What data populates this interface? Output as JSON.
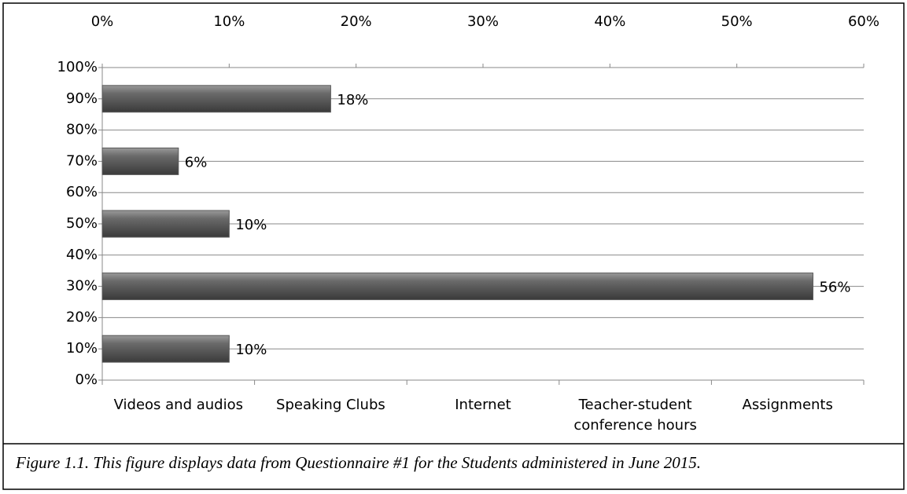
{
  "chart_data": {
    "type": "bar",
    "orientation": "horizontal",
    "categories": [
      "Videos and audios",
      "Speaking Clubs",
      "Internet",
      "Teacher-student conference hours",
      "Assignments"
    ],
    "positions": [
      10,
      30,
      50,
      70,
      90
    ],
    "values": [
      10,
      56,
      10,
      6,
      18
    ],
    "value_labels": [
      "10%",
      "56%",
      "10%",
      "6%",
      "18%"
    ],
    "color": "#595959",
    "xlim": [
      0,
      60
    ],
    "xticks": [
      {
        "value": 0,
        "label": "0%"
      },
      {
        "value": 10,
        "label": "10%"
      },
      {
        "value": 20,
        "label": "20%"
      },
      {
        "value": 30,
        "label": "30%"
      },
      {
        "value": 40,
        "label": "40%"
      },
      {
        "value": 50,
        "label": "50%"
      },
      {
        "value": 60,
        "label": "60%"
      }
    ],
    "ylim": [
      0,
      100
    ],
    "yticks": [
      {
        "value": 0,
        "label": "0%"
      },
      {
        "value": 10,
        "label": "10%"
      },
      {
        "value": 20,
        "label": "20%"
      },
      {
        "value": 30,
        "label": "30%"
      },
      {
        "value": 40,
        "label": "40%"
      },
      {
        "value": 50,
        "label": "50%"
      },
      {
        "value": 60,
        "label": "60%"
      },
      {
        "value": 70,
        "label": "70%"
      },
      {
        "value": 80,
        "label": "80%"
      },
      {
        "value": 90,
        "label": "90%"
      },
      {
        "value": 100,
        "label": "100%"
      }
    ],
    "grid": true,
    "caption": "Figure 1.1. This figure displays data from Questionnaire #1 for the Students administered in June 2015."
  }
}
